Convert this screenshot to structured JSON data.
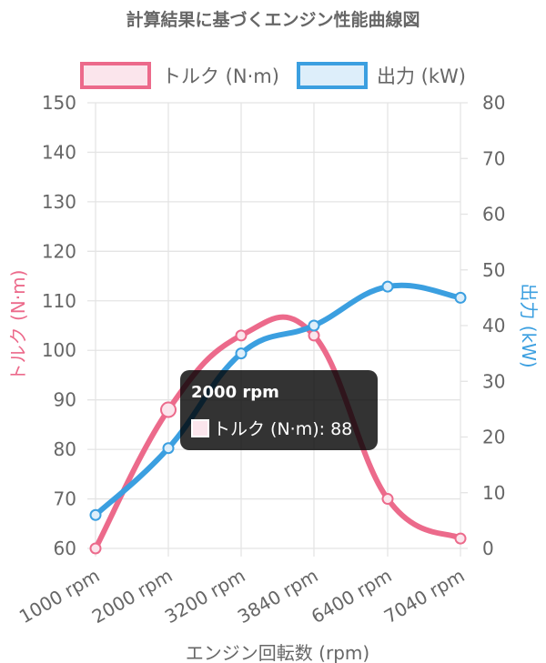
{
  "colors": {
    "torque": "#ec6a8b",
    "torque_fill": "#fbe5ec",
    "power": "#3b9fe0",
    "power_fill": "#ddeefa",
    "grid": "#e4e4e4",
    "text": "#666666"
  },
  "chart_data": {
    "type": "line",
    "title": "計算結果に基づくエンジン性能曲線図",
    "categories": [
      "1000 rpm",
      "2000 rpm",
      "3200 rpm",
      "3840 rpm",
      "6400 rpm",
      "7040 rpm"
    ],
    "xlabel": "エンジン回転数 (rpm)",
    "y_left": {
      "label": "トルク (N·m)",
      "range": [
        60,
        150
      ],
      "ticks": [
        60,
        70,
        80,
        90,
        100,
        110,
        120,
        130,
        140,
        150
      ]
    },
    "y_right": {
      "label": "出力 (kW)",
      "range": [
        0,
        80
      ],
      "ticks": [
        0,
        10,
        20,
        30,
        40,
        50,
        60,
        70,
        80
      ]
    },
    "series": [
      {
        "name": "トルク (N·m)",
        "axis": "left",
        "values": [
          60,
          88,
          103,
          103,
          70,
          62
        ]
      },
      {
        "name": "出力 (kW)",
        "axis": "right",
        "values": [
          6,
          18,
          35,
          40,
          47,
          45
        ]
      }
    ],
    "legend": [
      "トルク (N·m)",
      "出力 (kW)"
    ],
    "grid": true,
    "legend_position": "top"
  },
  "tooltip": {
    "title": "2000 rpm",
    "label": "トルク (N·m): 88"
  }
}
